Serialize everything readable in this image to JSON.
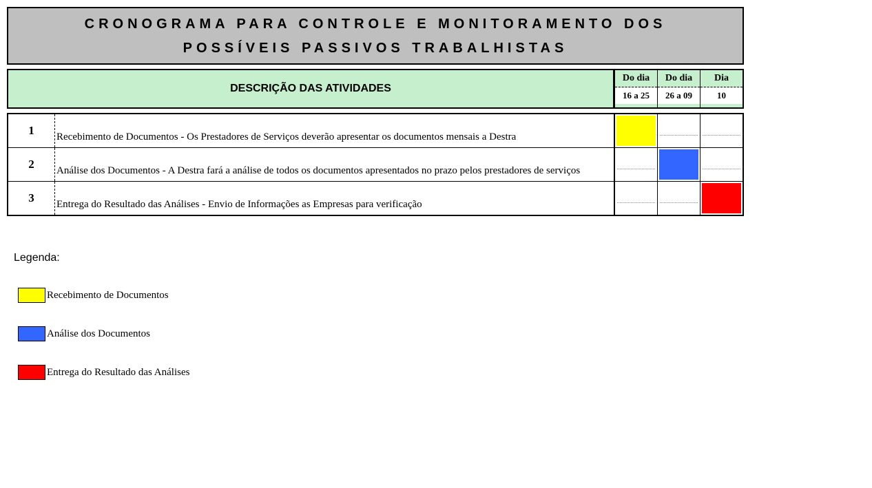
{
  "colors": {
    "title_bg": "#bfbfbf",
    "header_bg": "#c6efce",
    "yellow": "#ffff00",
    "blue": "#3366ff",
    "red": "#ff0000",
    "border": "#000000",
    "white": "#ffffff"
  },
  "title": {
    "line1": "CRONOGRAMA PARA CONTROLE E MONITORAMENTO DOS",
    "line2": "POSSÍVEIS PASSIVOS TRABALHISTAS"
  },
  "header": {
    "desc": "DESCRIÇÃO DAS ATIVIDADES",
    "cols": [
      {
        "top": "Do dia",
        "bot": "16 a 25"
      },
      {
        "top": "Do dia",
        "bot": "26 a 09"
      },
      {
        "top": "Dia",
        "bot": "10"
      }
    ]
  },
  "rows": [
    {
      "num": "1",
      "desc": "Recebimento de Documentos - Os Prestadores de Serviços deverão apresentar os documentos mensais a Destra",
      "cells": [
        "yellow",
        null,
        null
      ]
    },
    {
      "num": "2",
      "desc": "Análise dos Documentos - A Destra fará a análise de todos os documentos apresentados no prazo pelos prestadores de serviços",
      "cells": [
        null,
        "blue",
        null
      ]
    },
    {
      "num": "3",
      "desc": "Entrega do Resultado das Análises - Envio de Informações as Empresas para verificação",
      "cells": [
        null,
        null,
        "red"
      ]
    }
  ],
  "legend": {
    "title": "Legenda:",
    "items": [
      {
        "color": "yellow",
        "label": "Recebimento de Documentos"
      },
      {
        "color": "blue",
        "label": "Análise dos Documentos"
      },
      {
        "color": "red",
        "label": "Entrega do Resultado das Análises"
      }
    ]
  }
}
